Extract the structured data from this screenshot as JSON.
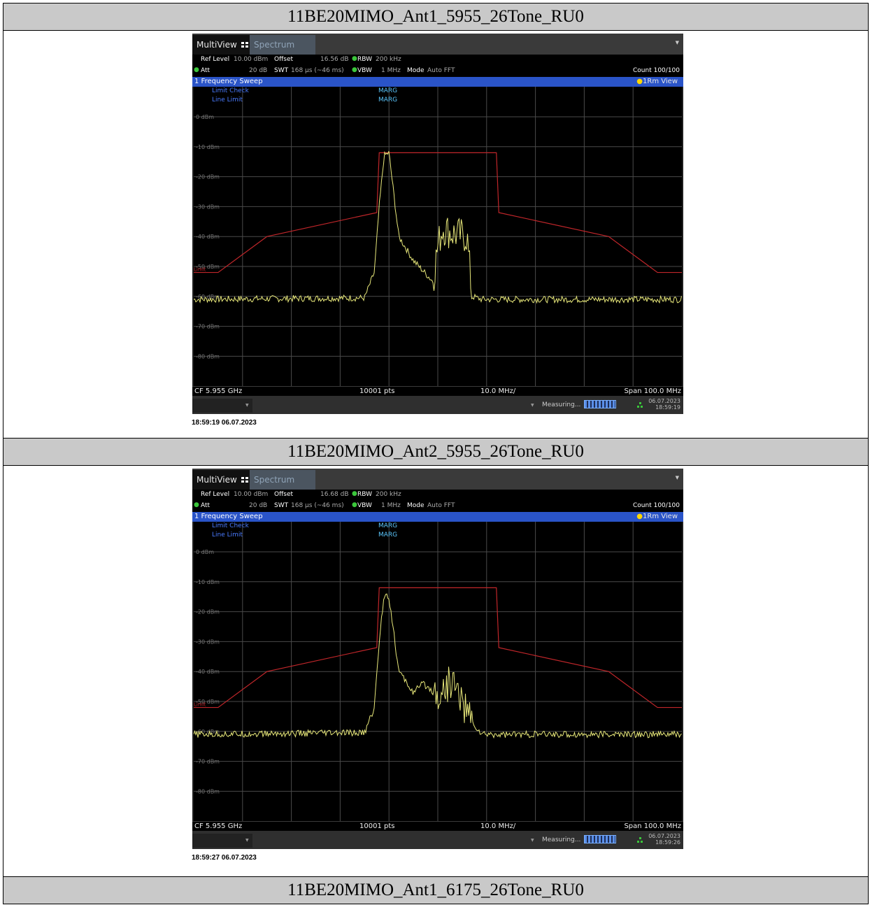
{
  "sections": [
    {
      "title": "11BE20MIMO_Ant1_5955_26Tone_RU0",
      "screen": {
        "tab_multiview": "MultiView",
        "tab_spectrum": "Spectrum",
        "ref_level_label": "Ref Level",
        "ref_level_value": "10.00 dBm",
        "offset_label": "Offset",
        "offset_value": "16.56 dB",
        "rbw_label": "RBW",
        "rbw_value": "200 kHz",
        "att_label": "Att",
        "att_value": "20 dB",
        "swt_label": "SWT",
        "swt_value": "168 µs (~46 ms)",
        "vbw_label": "VBW",
        "vbw_value": "1 MHz",
        "mode_label": "Mode",
        "mode_value": "Auto FFT",
        "count": "Count 100/100",
        "sweep_title": "1 Frequency Sweep",
        "trace_view": "1Rm View",
        "limit_check": "Limit Check",
        "line_limit": "Line Limit",
        "marg1": "MARG",
        "marg2": "MARG",
        "limit_tag": "Limit",
        "cf": "CF 5.955 GHz",
        "pts": "10001 pts",
        "div": "10.0 MHz/",
        "span": "Span 100.0 MHz",
        "measuring": "Measuring...",
        "date": "06.07.2023",
        "time": "18:59:19"
      },
      "stamp": "18:59:19  06.07.2023"
    },
    {
      "title": "11BE20MIMO_Ant2_5955_26Tone_RU0",
      "screen": {
        "tab_multiview": "MultiView",
        "tab_spectrum": "Spectrum",
        "ref_level_label": "Ref Level",
        "ref_level_value": "10.00 dBm",
        "offset_label": "Offset",
        "offset_value": "16.68 dB",
        "rbw_label": "RBW",
        "rbw_value": "200 kHz",
        "att_label": "Att",
        "att_value": "20 dB",
        "swt_label": "SWT",
        "swt_value": "168 µs (~46 ms)",
        "vbw_label": "VBW",
        "vbw_value": "1 MHz",
        "mode_label": "Mode",
        "mode_value": "Auto FFT",
        "count": "Count 100/100",
        "sweep_title": "1 Frequency Sweep",
        "trace_view": "1Rm View",
        "limit_check": "Limit Check",
        "line_limit": "Line Limit",
        "marg1": "MARG",
        "marg2": "MARG",
        "limit_tag": "Limit",
        "cf": "CF 5.955 GHz",
        "pts": "10001 pts",
        "div": "10.0 MHz/",
        "span": "Span 100.0 MHz",
        "measuring": "Measuring...",
        "date": "06.07.2023",
        "time": "18:59:26"
      },
      "stamp": "18:59:27  06.07.2023"
    },
    {
      "title": "11BE20MIMO_Ant1_6175_26Tone_RU0"
    }
  ],
  "y_ticks": [
    "0 dBm",
    "-10 dBm",
    "-20 dBm",
    "-30 dBm",
    "-40 dBm",
    "-50 dBm",
    "-60 dBm",
    "-70 dBm",
    "-80 dBm"
  ],
  "colors": {
    "trace": "#e8e87a",
    "limit_line": "#c0262a",
    "grid": "#4a4a4a",
    "sweep_bar": "#2a54c8",
    "header_fill": "#c9c9c9"
  },
  "chart_data": [
    {
      "type": "line",
      "xlabel": "",
      "ylabel": "",
      "x_axis": {
        "center": "5.955 GHz",
        "span_mhz": 100,
        "div_mhz": 10,
        "range_mhz": [
          -50,
          50
        ]
      },
      "ylim": [
        -90,
        10
      ],
      "series": [
        {
          "name": "1Rm",
          "x": [
            -50,
            -15,
            -13,
            -12,
            -11,
            -10,
            -8,
            -5,
            -1,
            0,
            1,
            3,
            6,
            7,
            9,
            -50
          ],
          "y": [
            -61,
            -60.5,
            -52,
            -30,
            -13,
            -12,
            -40,
            -48,
            -55,
            -43,
            -37,
            -39,
            -40,
            -60,
            -61,
            -61
          ]
        },
        {
          "name": "Limit",
          "x": [
            -50,
            -45,
            -35,
            -12.5,
            -12,
            12,
            12.5,
            35,
            45,
            50
          ],
          "y": [
            -52,
            -52,
            -40,
            -32,
            -12,
            -12,
            -32,
            -40,
            -52,
            -52
          ]
        }
      ]
    },
    {
      "type": "line",
      "xlabel": "",
      "ylabel": "",
      "x_axis": {
        "center": "5.955 GHz",
        "span_mhz": 100,
        "div_mhz": 10,
        "range_mhz": [
          -50,
          50
        ]
      },
      "ylim": [
        -90,
        10
      ],
      "series": [
        {
          "name": "1Rm",
          "x": [
            -50,
            -15,
            -13,
            -12,
            -11,
            -10,
            -8,
            -5,
            -3,
            0,
            3,
            7,
            9,
            50
          ],
          "y": [
            -61,
            -60.5,
            -52,
            -30,
            -14,
            -15,
            -40,
            -47,
            -44,
            -48,
            -43,
            -57,
            -61,
            -61
          ]
        },
        {
          "name": "Limit",
          "x": [
            -50,
            -45,
            -35,
            -12.5,
            -12,
            12,
            12.5,
            35,
            45,
            50
          ],
          "y": [
            -52,
            -52,
            -40,
            -32,
            -12,
            -12,
            -32,
            -40,
            -52,
            -52
          ]
        }
      ]
    }
  ]
}
